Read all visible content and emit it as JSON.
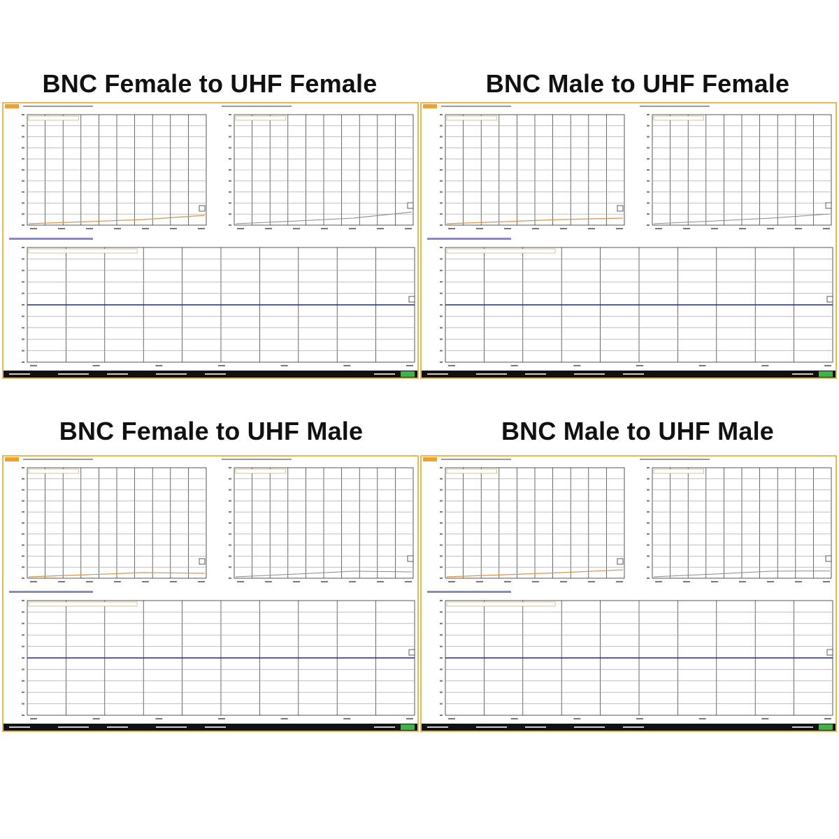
{
  "colors": {
    "frame": "#e6b850",
    "grid": "#2b2b2b",
    "reflection_trace": "#d9924a",
    "transmission_trace": "#8a8a8a",
    "phase_trace": "#1c2a8a",
    "status_bar": "#111111",
    "status_indicator": "#3fb24a"
  },
  "icons": {
    "marker": "marker-icon",
    "status_indicator": "status-indicator-icon"
  },
  "panels": [
    {
      "title": "BNC Female to UHF Female"
    },
    {
      "title": "BNC Male to UHF Female"
    },
    {
      "title": "BNC Female to UHF Male"
    },
    {
      "title": "BNC Male to UHF Male"
    }
  ]
}
